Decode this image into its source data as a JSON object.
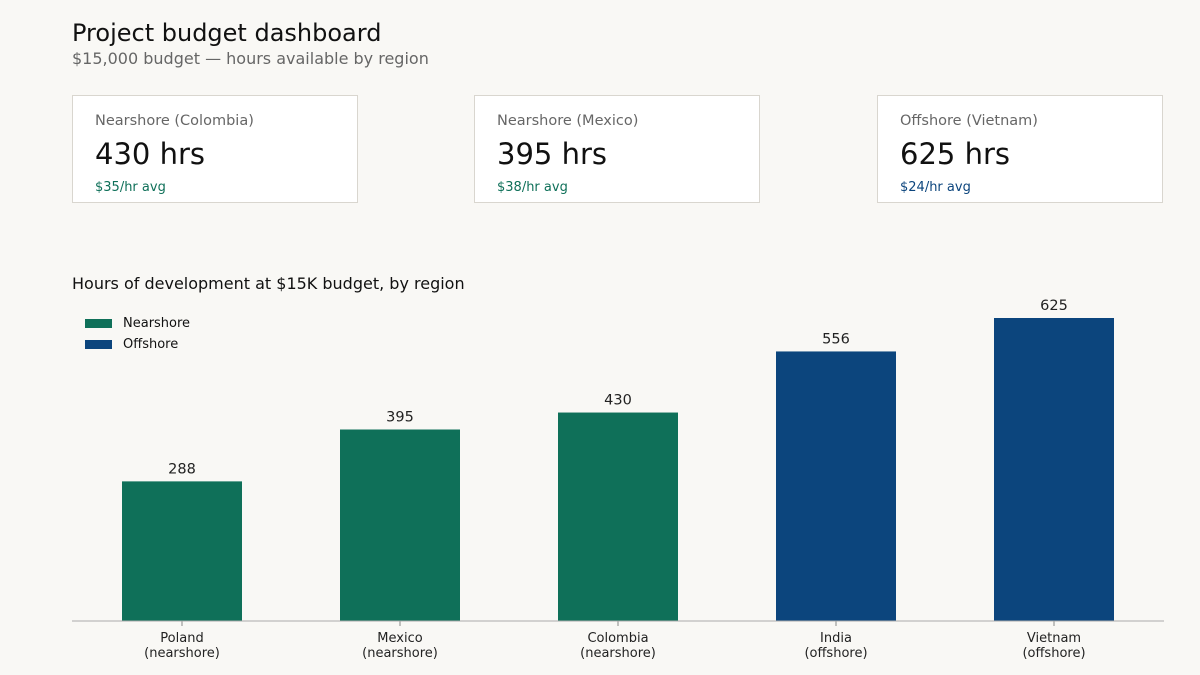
{
  "header": {
    "title": "Project budget dashboard",
    "subtitle": "$15,000 budget — hours available by region"
  },
  "cards": [
    {
      "label": "Nearshore (Colombia)",
      "value": "430 hrs",
      "rate": "$35/hr avg",
      "rate_color": "#0f7059"
    },
    {
      "label": "Nearshore (Mexico)",
      "value": "395 hrs",
      "rate": "$38/hr avg",
      "rate_color": "#0f7059"
    },
    {
      "label": "Offshore (Vietnam)",
      "value": "625 hrs",
      "rate": "$24/hr avg",
      "rate_color": "#0c457d"
    }
  ],
  "legend": [
    {
      "label": "Nearshore",
      "color": "#0f7059"
    },
    {
      "label": "Offshore",
      "color": "#0c457d"
    }
  ],
  "chart_data": {
    "type": "bar",
    "title": "Hours of development at $15K budget, by region",
    "xlabel": "",
    "ylabel": "",
    "categories": [
      [
        "Poland",
        "(nearshore)"
      ],
      [
        "Mexico",
        "(nearshore)"
      ],
      [
        "Colombia",
        "(nearshore)"
      ],
      [
        "India",
        "(offshore)"
      ],
      [
        "Vietnam",
        "(offshore)"
      ]
    ],
    "values": [
      288,
      395,
      430,
      556,
      625
    ],
    "groups": [
      "Nearshore",
      "Nearshore",
      "Nearshore",
      "Offshore",
      "Offshore"
    ],
    "ylim": [
      0,
      625
    ],
    "grid": false,
    "legend_position": "top-left",
    "colors": {
      "Nearshore": "#0f7059",
      "Offshore": "#0c457d"
    }
  }
}
